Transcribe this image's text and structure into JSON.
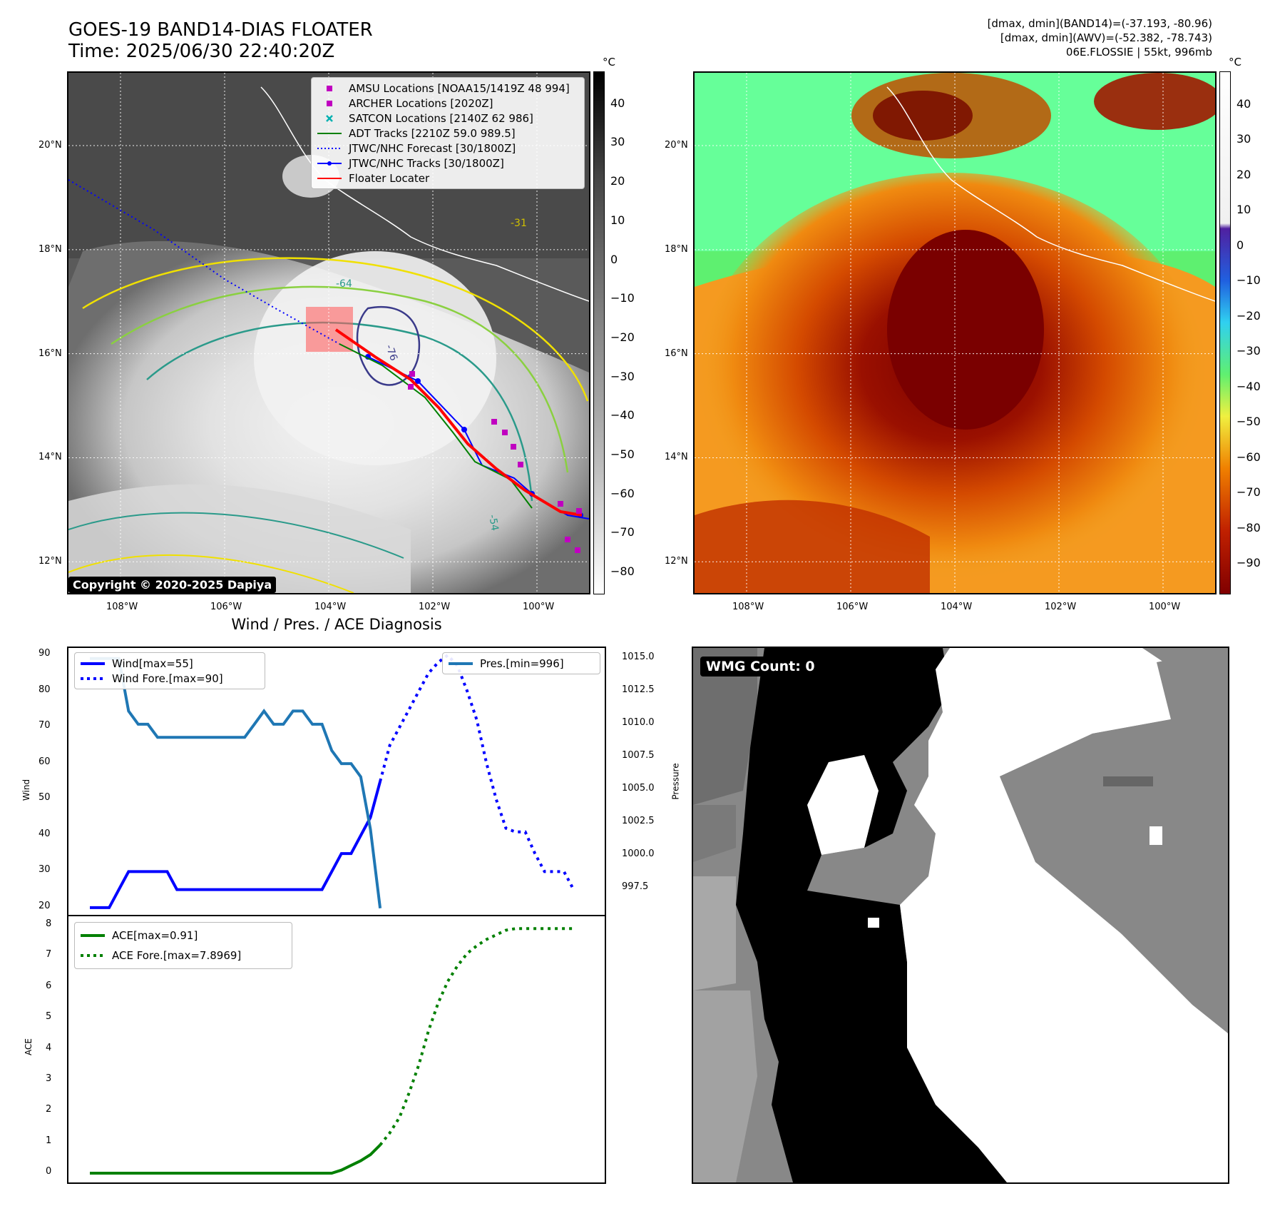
{
  "header": {
    "title_line1": "GOES-19 BAND14-DIAS FLOATER",
    "title_line2": "Time: 2025/06/30 22:40:20Z",
    "meta_line1": "[dmax, dmin](BAND14)=(-37.193, -80.96)",
    "meta_line2": "[dmax, dmin](AWV)=(-52.382, -78.743)",
    "meta_line3": "06E.FLOSSIE | 55kt, 996mb"
  },
  "map_axes": {
    "lat_labels": [
      "20°N",
      "18°N",
      "16°N",
      "14°N",
      "12°N"
    ],
    "lon_labels": [
      "108°W",
      "106°W",
      "104°W",
      "102°W",
      "100°W"
    ],
    "lat_values": [
      20,
      18,
      16,
      14,
      12
    ],
    "lon_values": [
      -108,
      -106,
      -104,
      -102,
      -100
    ],
    "extent": {
      "lon": [
        -109,
        -99
      ],
      "lat": [
        11.4,
        21.4
      ]
    }
  },
  "map_left": {
    "legend": [
      {
        "label": "AMSU Locations [NOAA15/1419Z 48 994]",
        "symbol": "square",
        "color": "#c000c0"
      },
      {
        "label": "ARCHER Locations [2020Z]",
        "symbol": "square",
        "color": "#c000c0"
      },
      {
        "label": "SATCON Locations [2140Z 62 986]",
        "symbol": "x",
        "color": "#00b0b0"
      },
      {
        "label": "ADT Tracks [2210Z 59.0 989.5]",
        "symbol": "line",
        "color": "#008000"
      },
      {
        "label": "JTWC/NHC Forecast [30/1800Z]",
        "symbol": "dotted",
        "color": "#0000ff"
      },
      {
        "label": "JTWC/NHC Tracks [30/1800Z]",
        "symbol": "line-dot",
        "color": "#0000ff"
      },
      {
        "label": "Floater Locater",
        "symbol": "line",
        "color": "#ff0000"
      }
    ],
    "copyright": "Copyright © 2020-2025 Dapiya",
    "contour_labels": [
      "-31",
      "-54",
      "-64",
      "-76"
    ],
    "colorbar_unit": "°C",
    "colorbar_ticks": [
      "40",
      "30",
      "20",
      "10",
      "0",
      "−10",
      "−20",
      "−30",
      "−40",
      "−50",
      "−60",
      "−70",
      "−80"
    ],
    "colorbar_range": [
      48,
      -86
    ]
  },
  "map_right": {
    "colorbar_unit": "°C",
    "colorbar_ticks": [
      "40",
      "30",
      "20",
      "10",
      "0",
      "−10",
      "−20",
      "−30",
      "−40",
      "−50",
      "−60",
      "−70",
      "−80",
      "−90"
    ],
    "colorbar_range": [
      49,
      -99
    ]
  },
  "chart_data": [
    {
      "type": "line",
      "title": "Wind / Pres. / ACE Diagnosis",
      "ylabel": "Wind",
      "ylabel_right": "Pressure",
      "ylim": [
        18,
        92
      ],
      "ylim_right": [
        995.5,
        1015.8
      ],
      "yticks": [
        "90",
        "80",
        "70",
        "60",
        "50",
        "40",
        "30",
        "20"
      ],
      "yticks_right": [
        "1015.0",
        "1012.5",
        "1010.0",
        "1007.5",
        "1005.0",
        "1002.5",
        "1000.0",
        "997.5"
      ],
      "legend_left": [
        "Wind[max=55]",
        "Wind Fore.[max=90]"
      ],
      "legend_right": [
        "Pres.[min=996]"
      ],
      "series": [
        {
          "name": "Wind[max=55]",
          "style": "solid",
          "color": "#0000ff",
          "x": [
            0,
            1,
            2,
            3,
            4,
            5,
            6,
            7,
            8,
            9,
            10,
            11,
            12,
            13,
            14,
            15,
            16,
            17,
            18,
            19,
            20,
            21,
            22,
            23,
            24,
            25,
            26,
            27,
            28,
            29,
            30,
            31
          ],
          "values": [
            20,
            20,
            20,
            25,
            30,
            30,
            30,
            30,
            30,
            25,
            25,
            25,
            25,
            25,
            25,
            25,
            25,
            25,
            25,
            25,
            25,
            25,
            25,
            25,
            25,
            30,
            35,
            35,
            40,
            45,
            55,
            null
          ]
        },
        {
          "name": "Wind Fore.[max=90]",
          "style": "dotted",
          "color": "#0000ff",
          "x": [
            30,
            31,
            32,
            33,
            34,
            35,
            36,
            37,
            38,
            39,
            40,
            41,
            42,
            43,
            44,
            45,
            46,
            47,
            48,
            49,
            50
          ],
          "values": [
            55,
            65,
            70,
            75,
            80,
            85,
            88,
            90,
            87,
            80,
            72,
            60,
            50,
            42,
            41,
            41,
            35,
            30,
            30,
            30,
            25
          ]
        },
        {
          "name": "Pres.[min=996]",
          "style": "solid",
          "color": "#1f77b4",
          "axis": "right",
          "x": [
            0,
            1,
            2,
            3,
            4,
            5,
            6,
            7,
            8,
            9,
            10,
            11,
            12,
            13,
            14,
            15,
            16,
            17,
            18,
            19,
            20,
            21,
            22,
            23,
            24,
            25,
            26,
            27,
            28,
            29,
            30
          ],
          "values": [
            1015,
            1015,
            1015,
            1015,
            1011,
            1010,
            1010,
            1009,
            1009,
            1009,
            1009,
            1009,
            1009,
            1009,
            1009,
            1009,
            1009,
            1010,
            1011,
            1010,
            1010,
            1011,
            1011,
            1010,
            1010,
            1008,
            1007,
            1007,
            1006,
            1002,
            996
          ]
        }
      ]
    },
    {
      "type": "line",
      "ylabel": "ACE",
      "ylim": [
        -0.3,
        8.3
      ],
      "yticks": [
        "8",
        "7",
        "6",
        "5",
        "4",
        "3",
        "2",
        "1",
        "0"
      ],
      "legend": [
        "ACE[max=0.91]",
        "ACE Fore.[max=7.8969]"
      ],
      "series": [
        {
          "name": "ACE[max=0.91]",
          "style": "solid",
          "color": "#008000",
          "x": [
            0,
            5,
            10,
            15,
            20,
            25,
            26,
            27,
            28,
            29,
            30
          ],
          "values": [
            0,
            0,
            0,
            0,
            0,
            0,
            0.1,
            0.25,
            0.4,
            0.6,
            0.91
          ]
        },
        {
          "name": "ACE Fore.[max=7.8969]",
          "style": "dotted",
          "color": "#008000",
          "x": [
            30,
            31,
            32,
            33,
            34,
            35,
            36,
            37,
            38,
            39,
            40,
            41,
            42,
            43,
            44,
            45,
            46,
            47,
            48,
            49,
            50
          ],
          "values": [
            0.91,
            1.3,
            1.8,
            2.6,
            3.5,
            4.6,
            5.5,
            6.2,
            6.7,
            7.1,
            7.35,
            7.55,
            7.7,
            7.85,
            7.9,
            7.9,
            7.9,
            7.9,
            7.9,
            7.9,
            7.9
          ]
        }
      ]
    }
  ],
  "wmg": {
    "label": "WMG Count: 0"
  }
}
